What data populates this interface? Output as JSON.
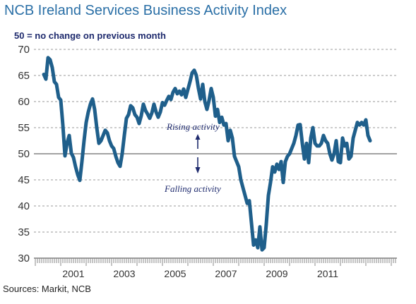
{
  "title": "NCB Ireland Services Business Activity Index",
  "subtitle": "50 =  no change on previous month",
  "source": "Sources: Markit, NCB",
  "chart_data": {
    "type": "line",
    "title": "NCB Ireland Services Business Activity Index",
    "subtitle": "50 =  no change on previous month",
    "xlabel": "",
    "ylabel": "",
    "ylim": [
      30,
      70
    ],
    "yticks": [
      30,
      35,
      40,
      45,
      50,
      55,
      60,
      65,
      70
    ],
    "year_labels": [
      "2001",
      "2003",
      "2005",
      "2007",
      "2009",
      "2011"
    ],
    "reference_line": 50,
    "grid": "horizontal dashed",
    "line_color": "#1f5f8b",
    "annotations": {
      "rising": "Rising activity",
      "falling": "Falling activity"
    },
    "series": [
      {
        "name": "",
        "x_start": "2000-05",
        "frequency": "monthly",
        "values": [
          65.2,
          64.3,
          68.4,
          68.0,
          66.5,
          63.8,
          63.3,
          60.8,
          60.3,
          55.5,
          49.6,
          52.1,
          53.5,
          50.1,
          49.3,
          47.5,
          46.0,
          44.9,
          48.5,
          52.5,
          56.0,
          58.0,
          59.5,
          60.5,
          58.5,
          55.0,
          52.0,
          52.5,
          53.5,
          54.5,
          54.0,
          52.5,
          51.5,
          51.0,
          49.5,
          48.3,
          47.6,
          50.0,
          53.5,
          56.8,
          57.5,
          59.2,
          58.8,
          57.5,
          57.0,
          55.8,
          57.3,
          59.5,
          58.3,
          57.6,
          56.8,
          57.8,
          59.5,
          58.0,
          57.0,
          58.0,
          59.8,
          59.3,
          60.2,
          61.0,
          60.4,
          61.8,
          62.5,
          61.5,
          62.0,
          61.3,
          62.4,
          60.8,
          62.3,
          63.8,
          65.5,
          66.0,
          65.0,
          62.5,
          60.5,
          63.3,
          60.0,
          58.5,
          60.2,
          62.5,
          60.8,
          57.2,
          58.5,
          56.0,
          57.0,
          55.5,
          55.8,
          52.5,
          54.5,
          53.0,
          49.5,
          48.5,
          47.5,
          45.0,
          43.5,
          42.0,
          40.5,
          41.0,
          36.8,
          32.5,
          33.5,
          32.0,
          36.0,
          31.6,
          32.0,
          36.5,
          42.0,
          44.5,
          47.5,
          46.5,
          48.0,
          47.0,
          48.5,
          44.5,
          48.5,
          49.5,
          50.0,
          51.0,
          52.0,
          53.5,
          55.5,
          55.6,
          52.0,
          49.0,
          52.0,
          48.3,
          53.0,
          55.0,
          52.0,
          51.5,
          51.5,
          52.0,
          53.5,
          52.5,
          52.0,
          50.0,
          48.8,
          50.0,
          52.5,
          48.5,
          48.3,
          53.0,
          51.5,
          52.0,
          49.0,
          49.5,
          53.0,
          54.5,
          56.0,
          55.5,
          56.0,
          55.5,
          56.5,
          53.5,
          52.5
        ]
      }
    ]
  }
}
